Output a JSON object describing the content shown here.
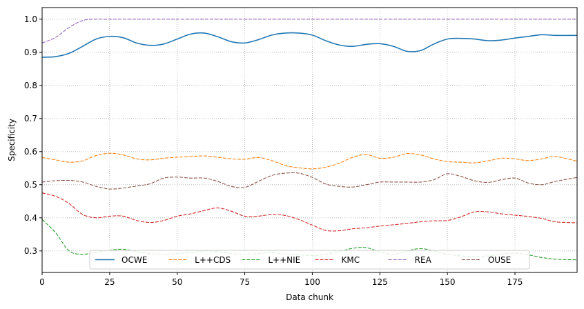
{
  "chart_data": {
    "type": "line",
    "xlabel": "Data chunk",
    "ylabel": "Specificity",
    "xlim": [
      0,
      198
    ],
    "ylim": [
      0.235,
      1.035
    ],
    "xticks": [
      0,
      25,
      50,
      75,
      100,
      125,
      150,
      175
    ],
    "yticks": [
      0.3,
      0.4,
      0.5,
      0.6,
      0.7,
      0.8,
      0.9,
      1.0
    ],
    "grid": true,
    "legend_position": "lower-center",
    "series": [
      {
        "name": "OCWE",
        "color": "#1f77b4",
        "dash": "solid",
        "points": [
          [
            0,
            0.885
          ],
          [
            5,
            0.887
          ],
          [
            10,
            0.897
          ],
          [
            15,
            0.918
          ],
          [
            20,
            0.94
          ],
          [
            25,
            0.948
          ],
          [
            30,
            0.944
          ],
          [
            35,
            0.928
          ],
          [
            40,
            0.921
          ],
          [
            45,
            0.925
          ],
          [
            50,
            0.94
          ],
          [
            55,
            0.955
          ],
          [
            60,
            0.958
          ],
          [
            65,
            0.947
          ],
          [
            70,
            0.932
          ],
          [
            75,
            0.928
          ],
          [
            80,
            0.938
          ],
          [
            85,
            0.952
          ],
          [
            90,
            0.958
          ],
          [
            95,
            0.958
          ],
          [
            100,
            0.952
          ],
          [
            105,
            0.935
          ],
          [
            110,
            0.922
          ],
          [
            115,
            0.918
          ],
          [
            120,
            0.924
          ],
          [
            125,
            0.926
          ],
          [
            130,
            0.918
          ],
          [
            135,
            0.903
          ],
          [
            140,
            0.905
          ],
          [
            145,
            0.925
          ],
          [
            150,
            0.94
          ],
          [
            155,
            0.942
          ],
          [
            160,
            0.94
          ],
          [
            165,
            0.935
          ],
          [
            170,
            0.937
          ],
          [
            175,
            0.943
          ],
          [
            180,
            0.948
          ],
          [
            185,
            0.953
          ],
          [
            190,
            0.951
          ],
          [
            198,
            0.951
          ]
        ]
      },
      {
        "name": "L++CDS",
        "color": "#ff7f0e",
        "dash": "dashed",
        "points": [
          [
            0,
            0.582
          ],
          [
            5,
            0.575
          ],
          [
            10,
            0.568
          ],
          [
            15,
            0.572
          ],
          [
            20,
            0.588
          ],
          [
            25,
            0.595
          ],
          [
            30,
            0.59
          ],
          [
            35,
            0.578
          ],
          [
            40,
            0.575
          ],
          [
            45,
            0.58
          ],
          [
            50,
            0.583
          ],
          [
            55,
            0.585
          ],
          [
            60,
            0.587
          ],
          [
            65,
            0.583
          ],
          [
            70,
            0.578
          ],
          [
            75,
            0.577
          ],
          [
            80,
            0.582
          ],
          [
            85,
            0.573
          ],
          [
            90,
            0.558
          ],
          [
            95,
            0.551
          ],
          [
            100,
            0.548
          ],
          [
            105,
            0.553
          ],
          [
            110,
            0.565
          ],
          [
            115,
            0.583
          ],
          [
            120,
            0.591
          ],
          [
            125,
            0.58
          ],
          [
            130,
            0.583
          ],
          [
            135,
            0.594
          ],
          [
            140,
            0.59
          ],
          [
            145,
            0.578
          ],
          [
            150,
            0.57
          ],
          [
            155,
            0.568
          ],
          [
            160,
            0.566
          ],
          [
            165,
            0.572
          ],
          [
            170,
            0.58
          ],
          [
            175,
            0.578
          ],
          [
            180,
            0.573
          ],
          [
            185,
            0.578
          ],
          [
            190,
            0.585
          ],
          [
            198,
            0.571
          ]
        ]
      },
      {
        "name": "L++NIE",
        "color": "#2ca02c",
        "dash": "dashed",
        "points": [
          [
            0,
            0.395
          ],
          [
            5,
            0.355
          ],
          [
            10,
            0.3
          ],
          [
            15,
            0.29
          ],
          [
            20,
            0.296
          ],
          [
            25,
            0.302
          ],
          [
            30,
            0.305
          ],
          [
            35,
            0.298
          ],
          [
            40,
            0.292
          ],
          [
            45,
            0.29
          ],
          [
            50,
            0.292
          ],
          [
            55,
            0.295
          ],
          [
            60,
            0.3
          ],
          [
            65,
            0.298
          ],
          [
            70,
            0.292
          ],
          [
            75,
            0.29
          ],
          [
            80,
            0.292
          ],
          [
            85,
            0.295
          ],
          [
            90,
            0.29
          ],
          [
            95,
            0.288
          ],
          [
            100,
            0.286
          ],
          [
            105,
            0.29
          ],
          [
            110,
            0.298
          ],
          [
            115,
            0.308
          ],
          [
            120,
            0.31
          ],
          [
            125,
            0.297
          ],
          [
            130,
            0.29
          ],
          [
            135,
            0.3
          ],
          [
            140,
            0.307
          ],
          [
            145,
            0.3
          ],
          [
            150,
            0.29
          ],
          [
            155,
            0.285
          ],
          [
            160,
            0.283
          ],
          [
            165,
            0.285
          ],
          [
            170,
            0.29
          ],
          [
            175,
            0.293
          ],
          [
            180,
            0.288
          ],
          [
            185,
            0.28
          ],
          [
            190,
            0.275
          ],
          [
            198,
            0.273
          ]
        ]
      },
      {
        "name": "KMC",
        "color": "#d62728",
        "dash": "dashed",
        "points": [
          [
            0,
            0.475
          ],
          [
            5,
            0.465
          ],
          [
            10,
            0.443
          ],
          [
            15,
            0.41
          ],
          [
            20,
            0.4
          ],
          [
            25,
            0.405
          ],
          [
            30,
            0.405
          ],
          [
            35,
            0.392
          ],
          [
            40,
            0.386
          ],
          [
            45,
            0.392
          ],
          [
            50,
            0.405
          ],
          [
            55,
            0.412
          ],
          [
            60,
            0.422
          ],
          [
            65,
            0.43
          ],
          [
            70,
            0.42
          ],
          [
            75,
            0.405
          ],
          [
            80,
            0.405
          ],
          [
            85,
            0.41
          ],
          [
            90,
            0.407
          ],
          [
            95,
            0.395
          ],
          [
            100,
            0.378
          ],
          [
            105,
            0.362
          ],
          [
            110,
            0.361
          ],
          [
            115,
            0.367
          ],
          [
            120,
            0.37
          ],
          [
            125,
            0.375
          ],
          [
            130,
            0.379
          ],
          [
            135,
            0.383
          ],
          [
            140,
            0.388
          ],
          [
            145,
            0.391
          ],
          [
            150,
            0.392
          ],
          [
            155,
            0.403
          ],
          [
            160,
            0.418
          ],
          [
            165,
            0.418
          ],
          [
            170,
            0.412
          ],
          [
            175,
            0.408
          ],
          [
            180,
            0.404
          ],
          [
            185,
            0.398
          ],
          [
            190,
            0.388
          ],
          [
            198,
            0.385
          ]
        ]
      },
      {
        "name": "REA",
        "color": "#9467bd",
        "dash": "dashed",
        "points": [
          [
            0,
            0.928
          ],
          [
            5,
            0.945
          ],
          [
            10,
            0.975
          ],
          [
            15,
            0.996
          ],
          [
            20,
            1.0
          ],
          [
            25,
            1.0
          ],
          [
            50,
            1.0
          ],
          [
            75,
            1.0
          ],
          [
            100,
            1.0
          ],
          [
            125,
            1.0
          ],
          [
            150,
            1.0
          ],
          [
            175,
            1.0
          ],
          [
            198,
            1.0
          ]
        ]
      },
      {
        "name": "OUSE",
        "color": "#8c564b",
        "dash": "dashed",
        "points": [
          [
            0,
            0.508
          ],
          [
            5,
            0.512
          ],
          [
            10,
            0.513
          ],
          [
            15,
            0.508
          ],
          [
            20,
            0.495
          ],
          [
            25,
            0.487
          ],
          [
            30,
            0.49
          ],
          [
            35,
            0.496
          ],
          [
            40,
            0.503
          ],
          [
            45,
            0.52
          ],
          [
            50,
            0.523
          ],
          [
            55,
            0.52
          ],
          [
            60,
            0.52
          ],
          [
            65,
            0.51
          ],
          [
            70,
            0.495
          ],
          [
            75,
            0.492
          ],
          [
            80,
            0.51
          ],
          [
            85,
            0.528
          ],
          [
            90,
            0.535
          ],
          [
            95,
            0.535
          ],
          [
            100,
            0.522
          ],
          [
            105,
            0.502
          ],
          [
            110,
            0.495
          ],
          [
            115,
            0.493
          ],
          [
            120,
            0.5
          ],
          [
            125,
            0.508
          ],
          [
            130,
            0.508
          ],
          [
            135,
            0.508
          ],
          [
            140,
            0.508
          ],
          [
            145,
            0.515
          ],
          [
            150,
            0.533
          ],
          [
            155,
            0.525
          ],
          [
            160,
            0.512
          ],
          [
            165,
            0.507
          ],
          [
            170,
            0.515
          ],
          [
            175,
            0.52
          ],
          [
            180,
            0.505
          ],
          [
            185,
            0.5
          ],
          [
            190,
            0.51
          ],
          [
            198,
            0.522
          ]
        ]
      }
    ]
  }
}
